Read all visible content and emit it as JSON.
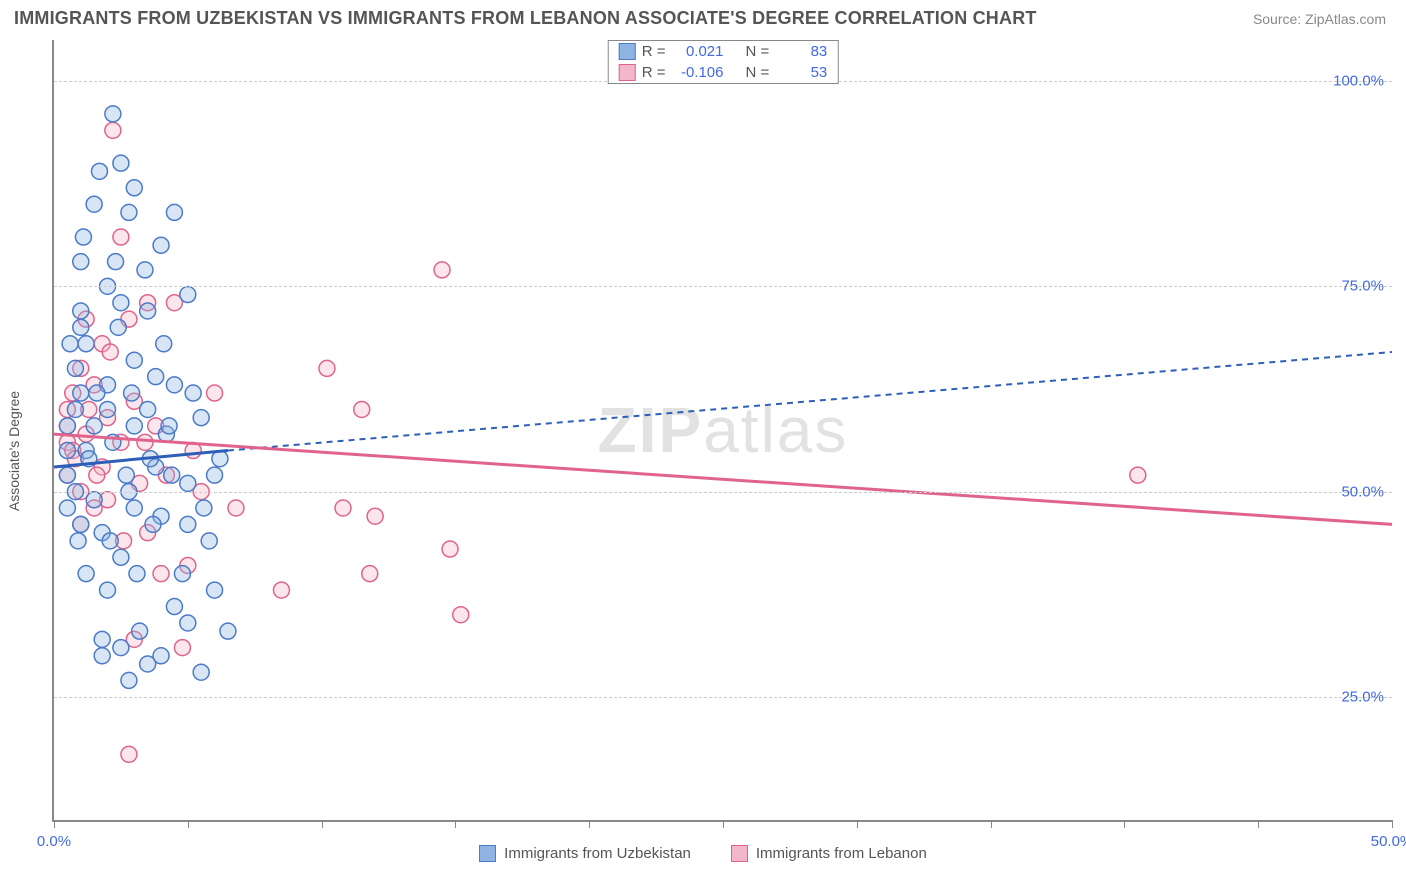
{
  "title": "IMMIGRANTS FROM UZBEKISTAN VS IMMIGRANTS FROM LEBANON ASSOCIATE'S DEGREE CORRELATION CHART",
  "source": "Source: ZipAtlas.com",
  "ylabel": "Associate's Degree",
  "watermark": {
    "prefix": "ZIP",
    "suffix": "atlas"
  },
  "colors": {
    "text": "#555555",
    "axis_label": "#4169e1",
    "grid": "#cccccc",
    "axis": "#888888",
    "series_a_fill": "#8fb4e3",
    "series_a_stroke": "#4a7bc8",
    "series_b_fill": "#f4b6c9",
    "series_b_stroke": "#e0638c",
    "trend_a": "#2d5fb8",
    "trend_b": "#e0638c",
    "watermark": "#cfcfcf"
  },
  "chart": {
    "type": "scatter",
    "xlim": [
      0,
      50
    ],
    "ylim": [
      10,
      105
    ],
    "y_gridlines": [
      25,
      50,
      75,
      100
    ],
    "y_tick_labels": [
      "25.0%",
      "50.0%",
      "75.0%",
      "100.0%"
    ],
    "x_ticks": [
      0,
      5,
      10,
      15,
      20,
      25,
      30,
      35,
      40,
      45,
      50
    ],
    "x_tick_labels": {
      "0": "0.0%",
      "50": "50.0%"
    },
    "marker_radius": 8,
    "series": [
      {
        "name": "Immigrants from Uzbekistan",
        "color_key": "a",
        "r_value": "0.021",
        "n_value": "83",
        "trend": {
          "x1": 0,
          "y1": 53,
          "x2_solid": 6.5,
          "y2_solid": 55,
          "x2_dash": 50,
          "y2_dash": 67
        },
        "points": [
          [
            0.5,
            55
          ],
          [
            0.5,
            58
          ],
          [
            0.5,
            52
          ],
          [
            0.5,
            48
          ],
          [
            0.8,
            65
          ],
          [
            0.8,
            60
          ],
          [
            0.8,
            50
          ],
          [
            1.0,
            72
          ],
          [
            1.0,
            78
          ],
          [
            1.0,
            62
          ],
          [
            1.0,
            46
          ],
          [
            1.2,
            55
          ],
          [
            1.2,
            68
          ],
          [
            1.2,
            40
          ],
          [
            1.5,
            85
          ],
          [
            1.5,
            58
          ],
          [
            1.5,
            49
          ],
          [
            1.8,
            30
          ],
          [
            1.8,
            32
          ],
          [
            1.8,
            45
          ],
          [
            2.0,
            75
          ],
          [
            2.0,
            38
          ],
          [
            2.0,
            60
          ],
          [
            2.0,
            63
          ],
          [
            2.2,
            96
          ],
          [
            2.2,
            56
          ],
          [
            2.5,
            90
          ],
          [
            2.5,
            73
          ],
          [
            2.5,
            42
          ],
          [
            2.5,
            31
          ],
          [
            2.8,
            84
          ],
          [
            2.8,
            27
          ],
          [
            2.8,
            50
          ],
          [
            3.0,
            66
          ],
          [
            3.0,
            48
          ],
          [
            3.0,
            58
          ],
          [
            3.0,
            87
          ],
          [
            3.2,
            33
          ],
          [
            3.5,
            29
          ],
          [
            3.5,
            60
          ],
          [
            3.5,
            72
          ],
          [
            3.8,
            53
          ],
          [
            3.8,
            64
          ],
          [
            4.0,
            80
          ],
          [
            4.0,
            30
          ],
          [
            4.0,
            47
          ],
          [
            4.2,
            57
          ],
          [
            4.5,
            84
          ],
          [
            4.5,
            63
          ],
          [
            4.5,
            36
          ],
          [
            5.0,
            51
          ],
          [
            5.0,
            46
          ],
          [
            5.0,
            74
          ],
          [
            5.0,
            34
          ],
          [
            5.5,
            28
          ],
          [
            5.5,
            59
          ],
          [
            5.8,
            44
          ],
          [
            6.0,
            38
          ],
          [
            6.0,
            52
          ],
          [
            6.5,
            33
          ],
          [
            1.0,
            70
          ],
          [
            1.3,
            54
          ],
          [
            1.6,
            62
          ],
          [
            2.1,
            44
          ],
          [
            2.4,
            70
          ],
          [
            2.7,
            52
          ],
          [
            3.1,
            40
          ],
          [
            3.4,
            77
          ],
          [
            3.7,
            46
          ],
          [
            4.1,
            68
          ],
          [
            4.4,
            52
          ],
          [
            4.8,
            40
          ],
          [
            5.2,
            62
          ],
          [
            5.6,
            48
          ],
          [
            6.2,
            54
          ],
          [
            1.1,
            81
          ],
          [
            1.7,
            89
          ],
          [
            2.3,
            78
          ],
          [
            0.6,
            68
          ],
          [
            0.9,
            44
          ],
          [
            2.9,
            62
          ],
          [
            3.6,
            54
          ],
          [
            4.3,
            58
          ]
        ]
      },
      {
        "name": "Immigrants from Lebanon",
        "color_key": "b",
        "r_value": "-0.106",
        "n_value": "53",
        "trend": {
          "x1": 0,
          "y1": 57,
          "x2_solid": 50,
          "y2_solid": 46,
          "x2_dash": null,
          "y2_dash": null
        },
        "points": [
          [
            0.5,
            56
          ],
          [
            0.5,
            58
          ],
          [
            0.5,
            52
          ],
          [
            0.5,
            60
          ],
          [
            0.7,
            62
          ],
          [
            0.7,
            55
          ],
          [
            1.0,
            65
          ],
          [
            1.0,
            50
          ],
          [
            1.0,
            46
          ],
          [
            1.2,
            71
          ],
          [
            1.2,
            57
          ],
          [
            1.5,
            48
          ],
          [
            1.5,
            63
          ],
          [
            1.8,
            53
          ],
          [
            1.8,
            68
          ],
          [
            2.0,
            59
          ],
          [
            2.0,
            49
          ],
          [
            2.2,
            94
          ],
          [
            2.5,
            56
          ],
          [
            2.5,
            81
          ],
          [
            2.8,
            71
          ],
          [
            2.8,
            18
          ],
          [
            3.0,
            61
          ],
          [
            3.0,
            32
          ],
          [
            3.2,
            51
          ],
          [
            3.5,
            45
          ],
          [
            3.5,
            73
          ],
          [
            3.8,
            58
          ],
          [
            4.0,
            40
          ],
          [
            4.5,
            73
          ],
          [
            4.8,
            31
          ],
          [
            5.0,
            41
          ],
          [
            5.2,
            55
          ],
          [
            5.5,
            50
          ],
          [
            6.0,
            62
          ],
          [
            6.8,
            48
          ],
          [
            8.5,
            38
          ],
          [
            10.2,
            65
          ],
          [
            10.8,
            48
          ],
          [
            11.5,
            60
          ],
          [
            11.8,
            40
          ],
          [
            14.5,
            77
          ],
          [
            14.8,
            43
          ],
          [
            15.2,
            35
          ],
          [
            40.5,
            52
          ],
          [
            0.8,
            54
          ],
          [
            1.3,
            60
          ],
          [
            1.6,
            52
          ],
          [
            2.1,
            67
          ],
          [
            2.6,
            44
          ],
          [
            3.4,
            56
          ],
          [
            4.2,
            52
          ],
          [
            12.0,
            47
          ]
        ]
      }
    ]
  },
  "legend_top": {
    "rows": [
      {
        "swatch": "a",
        "r_label": "R =",
        "n_label": "N ="
      },
      {
        "swatch": "b",
        "r_label": "R =",
        "n_label": "N ="
      }
    ]
  },
  "legend_bottom": {
    "items": [
      {
        "swatch": "a",
        "label": "Immigrants from Uzbekistan"
      },
      {
        "swatch": "b",
        "label": "Immigrants from Lebanon"
      }
    ]
  }
}
